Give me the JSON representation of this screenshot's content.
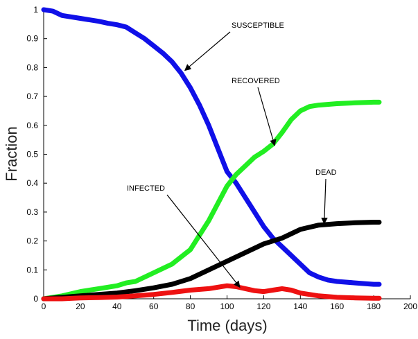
{
  "chart_data": {
    "type": "line",
    "xlabel": "Time (days)",
    "ylabel": "Fraction",
    "xlim": [
      0,
      200
    ],
    "ylim": [
      0,
      1
    ],
    "xticks": [
      0,
      20,
      40,
      60,
      80,
      100,
      120,
      140,
      160,
      180,
      200
    ],
    "yticks": [
      0,
      0.1,
      0.2,
      0.3,
      0.4,
      0.5,
      0.6,
      0.7,
      0.8,
      0.9,
      1
    ],
    "ytick_labels": [
      "0",
      "0.1",
      "0.2",
      "0.3",
      "0.4",
      "0.5",
      "0.6",
      "0.7",
      "0.8",
      "0.9",
      "1"
    ],
    "grid": false,
    "legend": "none",
    "series": [
      {
        "name": "SUSCEPTIBLE",
        "color": "#1010e8",
        "x": [
          0,
          5,
          10,
          20,
          30,
          35,
          40,
          45,
          50,
          55,
          60,
          65,
          70,
          75,
          80,
          85,
          90,
          95,
          100,
          105,
          110,
          115,
          120,
          125,
          130,
          135,
          140,
          145,
          150,
          155,
          160,
          170,
          180,
          183
        ],
        "y": [
          1.0,
          0.995,
          0.98,
          0.97,
          0.96,
          0.953,
          0.948,
          0.94,
          0.92,
          0.9,
          0.875,
          0.85,
          0.82,
          0.78,
          0.73,
          0.67,
          0.6,
          0.52,
          0.44,
          0.4,
          0.35,
          0.3,
          0.25,
          0.21,
          0.18,
          0.15,
          0.12,
          0.09,
          0.075,
          0.065,
          0.06,
          0.055,
          0.05,
          0.05
        ]
      },
      {
        "name": "RECOVERED",
        "color": "#22ee22",
        "x": [
          0,
          10,
          20,
          30,
          40,
          45,
          50,
          60,
          70,
          80,
          85,
          90,
          95,
          100,
          105,
          110,
          115,
          120,
          125,
          130,
          135,
          140,
          145,
          150,
          160,
          170,
          180,
          183
        ],
        "y": [
          0,
          0.01,
          0.025,
          0.035,
          0.045,
          0.055,
          0.06,
          0.09,
          0.12,
          0.17,
          0.22,
          0.27,
          0.33,
          0.39,
          0.43,
          0.46,
          0.49,
          0.51,
          0.535,
          0.575,
          0.62,
          0.65,
          0.665,
          0.67,
          0.675,
          0.678,
          0.68,
          0.68
        ]
      },
      {
        "name": "DEAD",
        "color": "#000000",
        "x": [
          0,
          10,
          20,
          30,
          40,
          50,
          60,
          70,
          80,
          90,
          100,
          110,
          120,
          130,
          140,
          150,
          160,
          170,
          180,
          183
        ],
        "y": [
          0,
          0.005,
          0.01,
          0.015,
          0.02,
          0.028,
          0.038,
          0.05,
          0.07,
          0.1,
          0.13,
          0.16,
          0.19,
          0.21,
          0.24,
          0.255,
          0.26,
          0.263,
          0.265,
          0.265
        ]
      },
      {
        "name": "INFECTED",
        "color": "#ee1111",
        "x": [
          0,
          10,
          20,
          30,
          40,
          50,
          60,
          70,
          80,
          90,
          95,
          100,
          105,
          110,
          115,
          120,
          125,
          130,
          135,
          140,
          150,
          160,
          170,
          180,
          183
        ],
        "y": [
          0,
          0,
          0.003,
          0.004,
          0.006,
          0.01,
          0.015,
          0.022,
          0.03,
          0.035,
          0.04,
          0.045,
          0.042,
          0.035,
          0.028,
          0.025,
          0.03,
          0.035,
          0.03,
          0.02,
          0.01,
          0.005,
          0.003,
          0.002,
          0.002
        ]
      }
    ],
    "annotations": [
      {
        "text": "SUSCEPTIBLE",
        "target_x": 77,
        "target_y": 0.79
      },
      {
        "text": "RECOVERED",
        "target_x": 126,
        "target_y": 0.53
      },
      {
        "text": "DEAD",
        "target_x": 153,
        "target_y": 0.26
      },
      {
        "text": "INFECTED",
        "target_x": 107,
        "target_y": 0.04
      }
    ]
  }
}
